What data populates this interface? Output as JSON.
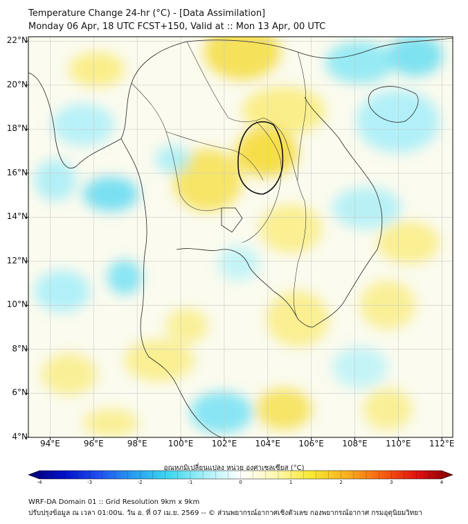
{
  "title": {
    "line1": "Temperature Change 24-hr (°C) - [Data Assimilation]",
    "line2": "Monday 06 Apr, 18 UTC FCST+150, Valid at :: Mon 13 Apr, 00 UTC"
  },
  "map": {
    "lat_labels": [
      "22°N",
      "20°N",
      "18°N",
      "16°N",
      "14°N",
      "12°N",
      "10°N",
      "8°N",
      "6°N",
      "4°N"
    ],
    "lon_labels": [
      "94°E",
      "96°E",
      "98°E",
      "100°E",
      "102°E",
      "104°E",
      "106°E",
      "108°E",
      "110°E",
      "112°E"
    ],
    "extent": {
      "lon_min": 93,
      "lon_max": 112.5,
      "lat_min": 4,
      "lat_max": 22.2
    }
  },
  "colorbar": {
    "title": "อุณหภูมิเปลี่ยนแปลง หน่วย องศาเซลเซียส (°C)",
    "ticks": [
      "-4",
      "-3",
      "-2",
      "-1",
      "0",
      "1",
      "2",
      "3",
      "4"
    ],
    "range": [
      -4,
      4
    ],
    "colors": [
      "#000070",
      "#0010c8",
      "#2050f0",
      "#28a0f0",
      "#40d8f0",
      "#a8f0f8",
      "#ffffff",
      "#fff8b0",
      "#f8e830",
      "#f8b020",
      "#f86010",
      "#e01010",
      "#800000"
    ]
  },
  "footer": {
    "line1": "WRF-DA Domain 01 :: Grid Resolution 9km x 9km",
    "line2": "ปรับปรุงข้อมูล ณ เวลา 01:00น. วัน อ. ที่ 07 เม.ย. 2569 -- © ส่วนพยากรณ์อากาศเชิงตัวเลข กองพยากรณ์อากาศ กรมอุตุนิยมวิทยา"
  }
}
